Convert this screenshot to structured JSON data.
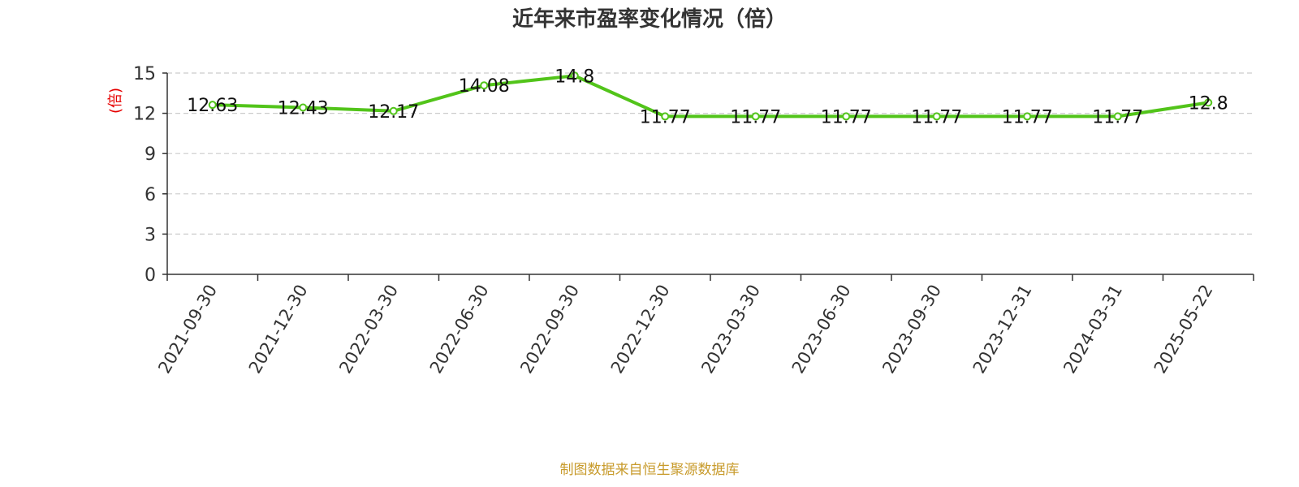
{
  "chart_data": {
    "type": "line",
    "title": "近年来市盈率变化情况（倍）",
    "ylabel": "(倍)",
    "xlabel": "",
    "categories": [
      "2021-09-30",
      "2021-12-30",
      "2022-03-30",
      "2022-06-30",
      "2022-09-30",
      "2022-12-30",
      "2023-03-30",
      "2023-06-30",
      "2023-09-30",
      "2023-12-31",
      "2024-03-31",
      "2025-05-22"
    ],
    "series": [
      {
        "values": [
          12.63,
          12.43,
          12.17,
          14.08,
          14.8,
          11.77,
          11.77,
          11.77,
          11.77,
          11.77,
          11.77,
          12.8
        ]
      }
    ],
    "data_labels": [
      "12.63",
      "12.43",
      "12.17",
      "14.08",
      "14.8",
      "11.77",
      "11.77",
      "11.77",
      "11.77",
      "11.77",
      "11.77",
      "12.8"
    ],
    "yticks": [
      "0",
      "3",
      "6",
      "9",
      "12",
      "15"
    ],
    "ylim": [
      0,
      15
    ],
    "grid": true,
    "colors": {
      "line": "#52c41a",
      "marker_fill": "#ffffff",
      "ylabel": "#e60000",
      "source": "#c89b2c",
      "grid": "#cccccc",
      "axis": "#333333"
    }
  },
  "footer": {
    "source": "制图数据来自恒生聚源数据库"
  }
}
